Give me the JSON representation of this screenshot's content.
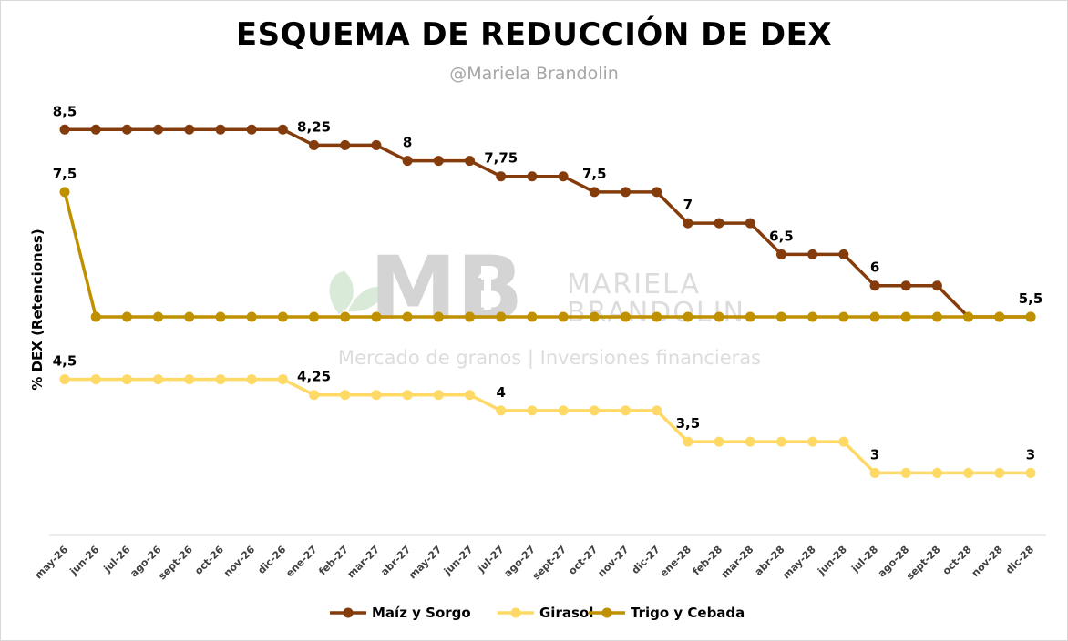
{
  "title": "ESQUEMA DE REDUCCIÓN DE DEX",
  "subtitle": "@Mariela Brandolin",
  "watermark": {
    "logo": "MB",
    "name_line1": "MARIELA",
    "name_line2": "BRANDOLIN",
    "tagline": "Mercado de granos | Inversiones financieras"
  },
  "chart_data": {
    "type": "line",
    "ylabel": "% DEX (Retenciones)",
    "xlabel": "",
    "ylim": [
      2,
      9
    ],
    "grid": false,
    "legend_position": "bottom",
    "categories": [
      "may-26",
      "jun-26",
      "jul-26",
      "ago-26",
      "sept-26",
      "oct-26",
      "nov-26",
      "dic-26",
      "ene-27",
      "feb-27",
      "mar-27",
      "abr-27",
      "may-27",
      "jun-27",
      "jul-27",
      "ago-27",
      "sept-27",
      "oct-27",
      "nov-27",
      "dic-27",
      "ene-28",
      "feb-28",
      "mar-28",
      "abr-28",
      "may-28",
      "jun-28",
      "jul-28",
      "ago-28",
      "sept-28",
      "oct-28",
      "nov-28",
      "dic-28"
    ],
    "series": [
      {
        "name": "Maíz y Sorgo",
        "color": "#843c0c",
        "values": [
          8.5,
          8.5,
          8.5,
          8.5,
          8.5,
          8.5,
          8.5,
          8.5,
          8.25,
          8.25,
          8.25,
          8,
          8,
          8,
          7.75,
          7.75,
          7.75,
          7.5,
          7.5,
          7.5,
          7,
          7,
          7,
          6.5,
          6.5,
          6.5,
          6,
          6,
          6,
          5.5,
          5.5,
          5.5
        ],
        "labels": [
          {
            "index": 0,
            "text": "8,5"
          },
          {
            "index": 8,
            "text": "8,25"
          },
          {
            "index": 11,
            "text": "8"
          },
          {
            "index": 14,
            "text": "7,75"
          },
          {
            "index": 17,
            "text": "7,5"
          },
          {
            "index": 20,
            "text": "7"
          },
          {
            "index": 23,
            "text": "6,5"
          },
          {
            "index": 26,
            "text": "6"
          },
          {
            "index": 31,
            "text": "5,5"
          }
        ]
      },
      {
        "name": "Girasol",
        "color": "#ffd966",
        "values": [
          4.5,
          4.5,
          4.5,
          4.5,
          4.5,
          4.5,
          4.5,
          4.5,
          4.25,
          4.25,
          4.25,
          4.25,
          4.25,
          4.25,
          4,
          4,
          4,
          4,
          4,
          4,
          3.5,
          3.5,
          3.5,
          3.5,
          3.5,
          3.5,
          3,
          3,
          3,
          3,
          3,
          3
        ],
        "labels": [
          {
            "index": 0,
            "text": "4,5"
          },
          {
            "index": 8,
            "text": "4,25"
          },
          {
            "index": 14,
            "text": "4"
          },
          {
            "index": 20,
            "text": "3,5"
          },
          {
            "index": 26,
            "text": "3"
          },
          {
            "index": 31,
            "text": "3"
          }
        ]
      },
      {
        "name": "Trigo y Cebada",
        "color": "#bf9000",
        "values": [
          7.5,
          5.5,
          5.5,
          5.5,
          5.5,
          5.5,
          5.5,
          5.5,
          5.5,
          5.5,
          5.5,
          5.5,
          5.5,
          5.5,
          5.5,
          5.5,
          5.5,
          5.5,
          5.5,
          5.5,
          5.5,
          5.5,
          5.5,
          5.5,
          5.5,
          5.5,
          5.5,
          5.5,
          5.5,
          5.5,
          5.5,
          5.5
        ],
        "labels": [
          {
            "index": 0,
            "text": "7,5"
          }
        ]
      }
    ]
  }
}
